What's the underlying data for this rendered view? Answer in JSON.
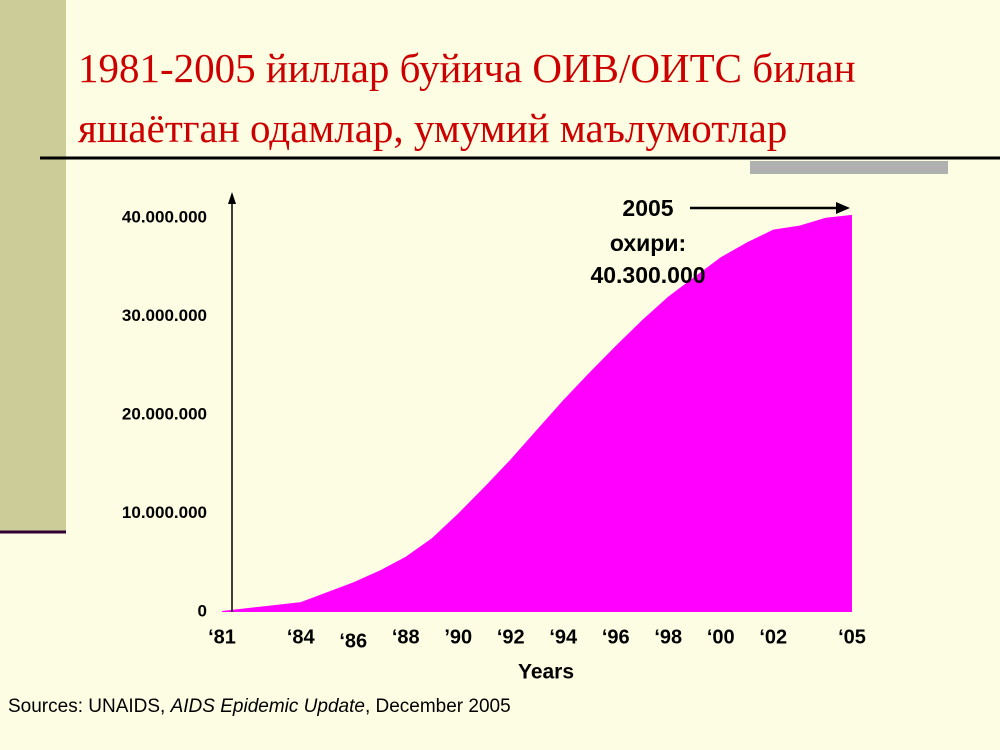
{
  "chart_data": {
    "type": "area",
    "title": "1981-2005 йиллар буйича ОИВ/ОИТС билан яшаётган одамлар, умумий маълумотлар",
    "x_label": "Years",
    "annotation": [
      "2005",
      "охири:",
      "40.300.000"
    ],
    "source": [
      "Sources: UNAIDS, ",
      "AIDS Epidemic Update",
      ", December 2005"
    ],
    "x": [
      1981,
      1982,
      1983,
      1984,
      1985,
      1986,
      1987,
      1988,
      1989,
      1990,
      1991,
      1992,
      1993,
      1994,
      1995,
      1996,
      1997,
      1998,
      1999,
      2000,
      2001,
      2002,
      2003,
      2004,
      2005
    ],
    "values": [
      100000,
      400000,
      700000,
      1000000,
      2000000,
      3000000,
      4200000,
      5600000,
      7500000,
      10000000,
      12700000,
      15500000,
      18500000,
      21500000,
      24300000,
      27000000,
      29600000,
      32000000,
      34000000,
      36000000,
      37500000,
      38800000,
      39200000,
      40000000,
      40300000
    ],
    "color": "#ff00ff",
    "xlim": [
      1980.5,
      2005
    ],
    "xticks": [
      {
        "value": 1981,
        "label": "‘81"
      },
      {
        "value": 1984,
        "label": "‘84"
      },
      {
        "value": 1986,
        "label": "‘86"
      },
      {
        "value": 1988,
        "label": "‘88"
      },
      {
        "value": 1990,
        "label": "’90"
      },
      {
        "value": 1992,
        "label": "‘92"
      },
      {
        "value": 1994,
        "label": "‘94"
      },
      {
        "value": 1996,
        "label": "‘96"
      },
      {
        "value": 1998,
        "label": "‘98"
      },
      {
        "value": 2000,
        "label": "‘00"
      },
      {
        "value": 2002,
        "label": "‘02"
      },
      {
        "value": 2005,
        "label": "‘05"
      }
    ],
    "ylim": [
      0,
      41500000
    ],
    "yticks": [
      0,
      {
        "value": 10000000,
        "label": "10.000.000"
      },
      {
        "value": 20000000,
        "label": "20.000.000"
      },
      {
        "value": 30000000,
        "label": "30.000.000"
      },
      {
        "value": 40000000,
        "label": "40.000.000"
      }
    ]
  }
}
